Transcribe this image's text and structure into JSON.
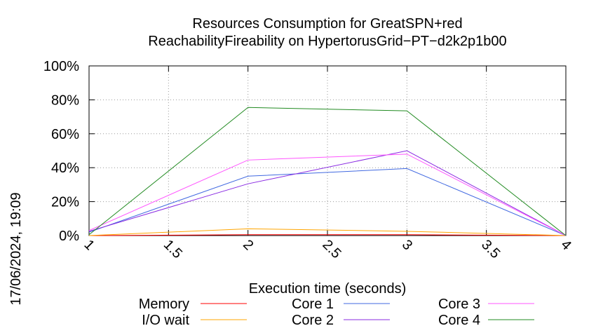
{
  "chart_data": {
    "type": "line",
    "title": "Resources Consumption for GreatSPN+red",
    "subtitle": "ReachabilityFireability on HypertorusGrid−PT−d2k2p1b00",
    "xlabel": "Execution time (seconds)",
    "ylabel": "",
    "xlim": [
      1,
      4
    ],
    "ylim": [
      0,
      100
    ],
    "x_ticks": [
      "1",
      "1.5",
      "2",
      "2.5",
      "3",
      "3.5",
      "4"
    ],
    "y_ticks": [
      "0%",
      "20%",
      "40%",
      "60%",
      "80%",
      "100%"
    ],
    "grid": true,
    "legend_position": "bottom",
    "timestamp": "17/06/2024, 19:09",
    "x": [
      1,
      2,
      3,
      4
    ],
    "series": [
      {
        "name": "Memory",
        "color": "#ff0000",
        "values": [
          0,
          0.5,
          0.5,
          0
        ]
      },
      {
        "name": "I/O wait",
        "color": "#ffa500",
        "values": [
          0,
          4,
          2.5,
          0
        ]
      },
      {
        "name": "Core 1",
        "color": "#4169e1",
        "values": [
          2,
          35,
          39.5,
          0
        ]
      },
      {
        "name": "Core 2",
        "color": "#8a2be2",
        "values": [
          2.5,
          30.5,
          50,
          0
        ]
      },
      {
        "name": "Core 3",
        "color": "#ff55ff",
        "values": [
          3,
          44.5,
          48,
          0
        ]
      },
      {
        "name": "Core 4",
        "color": "#228b22",
        "values": [
          0.5,
          75.5,
          73.5,
          0
        ]
      }
    ]
  }
}
